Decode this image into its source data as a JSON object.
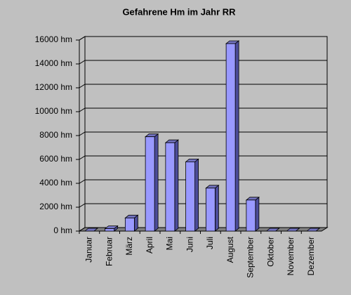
{
  "chart_data": {
    "type": "bar",
    "title": "Gefahrene Hm im Jahr RR",
    "categories": [
      "Januar",
      "Februar",
      "März",
      "April",
      "Mai",
      "Juni",
      "Juli",
      "August",
      "September",
      "Oktober",
      "November",
      "Dezember"
    ],
    "values": [
      0,
      200,
      1100,
      7900,
      7400,
      5800,
      3600,
      15700,
      2600,
      0,
      0,
      0
    ],
    "color": "#9999ff",
    "ylim": [
      0,
      16000
    ],
    "yticks": [
      {
        "value": 0,
        "label": "0 hm"
      },
      {
        "value": 2000,
        "label": "2000 hm"
      },
      {
        "value": 4000,
        "label": "4000 hm"
      },
      {
        "value": 6000,
        "label": "6000 hm"
      },
      {
        "value": 8000,
        "label": "8000 hm"
      },
      {
        "value": 10000,
        "label": "10000 hm"
      },
      {
        "value": 12000,
        "label": "12000 hm"
      },
      {
        "value": 14000,
        "label": "14000 hm"
      },
      {
        "value": 16000,
        "label": "16000 hm"
      }
    ],
    "grid": true
  }
}
